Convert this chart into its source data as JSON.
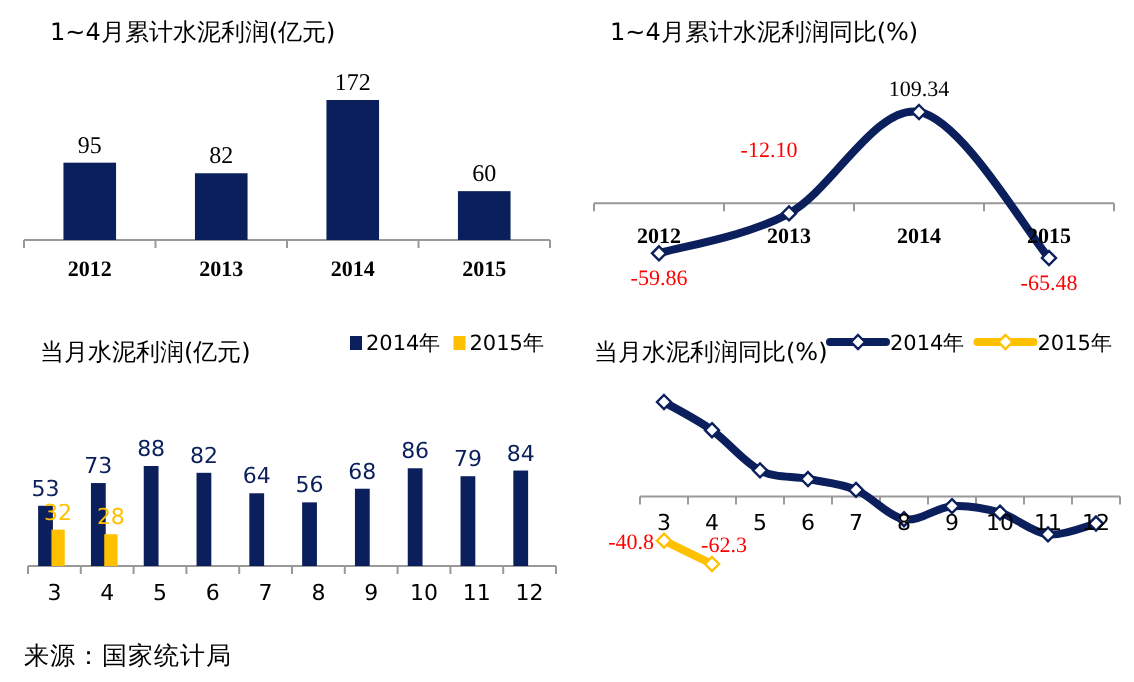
{
  "chart_data": [
    {
      "type": "bar",
      "title": "1~4月累计水泥利润(亿元)",
      "categories": [
        "2012",
        "2013",
        "2014",
        "2015"
      ],
      "series": [
        {
          "color": "#0a1f5c",
          "values": [
            95,
            82,
            172,
            60
          ]
        }
      ],
      "data_labels": true,
      "tick_labels": "x",
      "legend": false
    },
    {
      "type": "line",
      "title": "1~4月累计水泥利润同比(%)",
      "categories": [
        "2012",
        "2013",
        "2014",
        "2015"
      ],
      "series": [
        {
          "color": "#0a1f5c",
          "values": [
            -59.86,
            -12.1,
            109.34,
            -65.48
          ],
          "value_labels": [
            "-59.86",
            "-12.10",
            "109.34",
            "-65.48"
          ]
        }
      ],
      "marker": "diamond",
      "tick_labels": "x",
      "legend": false
    },
    {
      "type": "bar",
      "title": "当月水泥利润(亿元)",
      "categories": [
        "3",
        "4",
        "5",
        "6",
        "7",
        "8",
        "9",
        "10",
        "11",
        "12"
      ],
      "series": [
        {
          "name": "2014年",
          "color": "#0a1f5c",
          "values": [
            53,
            73,
            88,
            82,
            64,
            56,
            68,
            86,
            79,
            84
          ]
        },
        {
          "name": "2015年",
          "color": "#ffc000",
          "values": [
            32,
            28,
            null,
            null,
            null,
            null,
            null,
            null,
            null,
            null
          ]
        }
      ],
      "data_labels": true,
      "tick_labels": "x",
      "legend": "top right",
      "annotations": [
        "来源：国家统计局"
      ]
    },
    {
      "type": "line",
      "title": "当月水泥利润同比(%)",
      "categories": [
        "3",
        "4",
        "5",
        "6",
        "7",
        "8",
        "9",
        "10",
        "11",
        "12"
      ],
      "series": [
        {
          "name": "2014年",
          "color": "#0a1f5c",
          "values": [
            87,
            61,
            24,
            16,
            6,
            -21,
            -9,
            -15,
            -35,
            -25
          ]
        },
        {
          "name": "2015年",
          "color": "#ffc000",
          "values": [
            -40.8,
            -62.3,
            null,
            null,
            null,
            null,
            null,
            null,
            null,
            null
          ],
          "value_labels": [
            "-40.8",
            "-62.3",
            null,
            null,
            null,
            null,
            null,
            null,
            null,
            null
          ]
        }
      ],
      "marker": "diamond",
      "tick_labels": "x",
      "legend": "top right"
    }
  ]
}
